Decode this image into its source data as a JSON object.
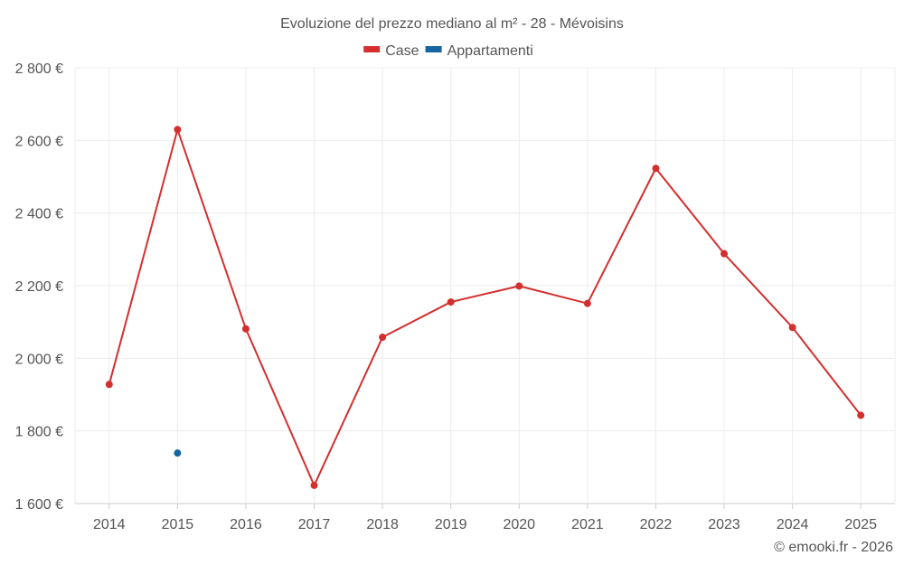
{
  "chart_data": {
    "type": "line",
    "title": "Evoluzione del prezzo mediano al m² - 28 - Mévoisins",
    "categories": [
      "2014",
      "2015",
      "2016",
      "2017",
      "2018",
      "2019",
      "2020",
      "2021",
      "2022",
      "2023",
      "2024",
      "2025"
    ],
    "series": [
      {
        "name": "Case",
        "color": "#d32f2f",
        "values": [
          1928,
          2630,
          2081,
          1650,
          2058,
          2155,
          2199,
          2151,
          2523,
          2288,
          2085,
          1843
        ]
      },
      {
        "name": "Appartamenti",
        "color": "#1565a0",
        "values": [
          null,
          1739,
          null,
          null,
          null,
          null,
          null,
          null,
          null,
          null,
          null,
          null
        ]
      }
    ],
    "y_ticks": [
      "1 600 €",
      "1 800 €",
      "2 000 €",
      "2 200 €",
      "2 400 €",
      "2 600 €",
      "2 800 €"
    ],
    "ylim": [
      1600,
      2800
    ],
    "grid": true,
    "legend_position": "top-center"
  },
  "credit": "© emooki.fr - 2026"
}
